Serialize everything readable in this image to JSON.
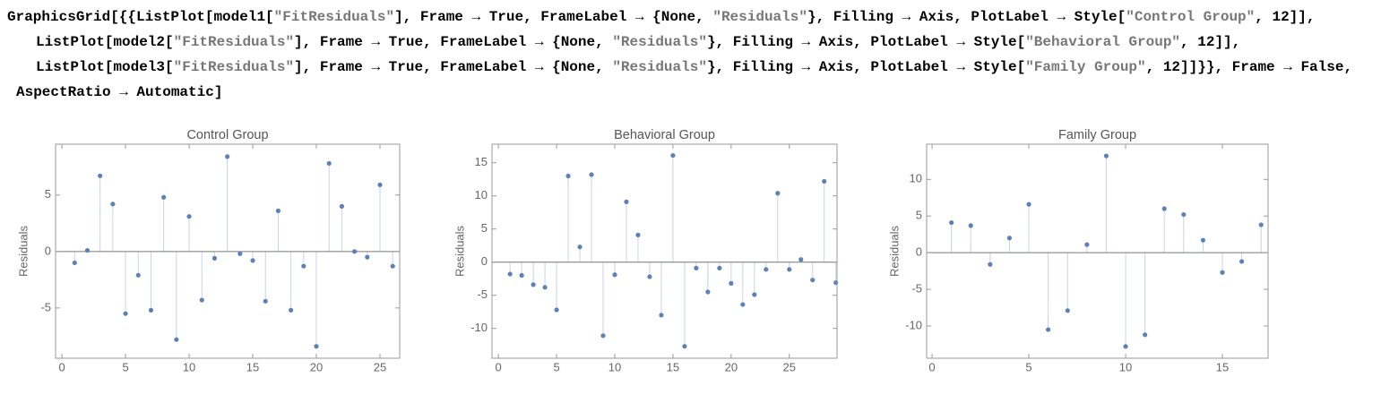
{
  "code": [
    "GraphicsGrid[{{ListPlot[model1[\"FitResiduals\"], Frame → True, FrameLabel → {None, \"Residuals\"}, Filling → Axis, PlotLabel → Style[\"Control Group\", 12]],",
    "ListPlot[model2[\"FitResiduals\"], Frame → True, FrameLabel → {None, \"Residuals\"}, Filling → Axis, PlotLabel → Style[\"Behavioral Group\", 12]],",
    "ListPlot[model3[\"FitResiduals\"], Frame → True, FrameLabel → {None, \"Residuals\"}, Filling → Axis, PlotLabel → Style[\"Family Group\", 12]]}}, Frame → False,",
    "AspectRatio → Automatic]"
  ],
  "chart_data": [
    {
      "type": "scatter",
      "title": "Control Group",
      "y_label": "Residuals",
      "filling": true,
      "color": "#5e81b5",
      "x": [
        1,
        2,
        3,
        4,
        5,
        6,
        7,
        8,
        9,
        10,
        11,
        12,
        13,
        14,
        15,
        16,
        17,
        18,
        19,
        20,
        21,
        22,
        23,
        24,
        25,
        26
      ],
      "values": [
        -1.0,
        0.1,
        6.7,
        4.2,
        -5.5,
        -2.1,
        -5.2,
        4.8,
        -7.8,
        3.1,
        -4.3,
        -0.6,
        8.4,
        -0.2,
        -0.8,
        -4.4,
        3.6,
        -5.2,
        -1.3,
        -8.4,
        7.8,
        4.0,
        0.0,
        -0.5,
        5.9,
        -1.3
      ],
      "xlim": [
        -0.5,
        26.55
      ],
      "ylim": [
        -9.45,
        9.5
      ],
      "xticks": [
        0,
        5,
        10,
        15,
        20,
        25
      ],
      "yticks": [
        -5,
        0,
        5
      ]
    },
    {
      "type": "scatter",
      "title": "Behavioral Group",
      "y_label": "Residuals",
      "filling": true,
      "color": "#5e81b5",
      "x": [
        1,
        2,
        3,
        4,
        5,
        6,
        7,
        8,
        9,
        10,
        11,
        12,
        13,
        14,
        15,
        16,
        17,
        18,
        19,
        20,
        21,
        22,
        23,
        24,
        25,
        26,
        27,
        28,
        29
      ],
      "values": [
        -1.8,
        -2.0,
        -3.4,
        -3.8,
        -7.2,
        13.0,
        2.3,
        13.2,
        -11.1,
        -1.9,
        9.1,
        4.1,
        -2.2,
        -8.0,
        16.1,
        -12.7,
        -0.9,
        -4.5,
        -0.9,
        -3.2,
        -6.4,
        -4.9,
        -1.1,
        10.4,
        -1.1,
        0.4,
        -2.7,
        12.2,
        -3.1
      ],
      "xlim": [
        -0.55,
        29.1
      ],
      "ylim": [
        -14.5,
        17.8
      ],
      "xticks": [
        0,
        5,
        10,
        15,
        20,
        25
      ],
      "yticks": [
        -10,
        -5,
        0,
        5,
        10,
        15
      ]
    },
    {
      "type": "scatter",
      "title": "Family Group",
      "y_label": "Residuals",
      "filling": true,
      "color": "#5e81b5",
      "x": [
        1,
        2,
        3,
        4,
        5,
        6,
        7,
        8,
        9,
        10,
        11,
        12,
        13,
        14,
        15,
        16,
        17
      ],
      "values": [
        4.1,
        3.7,
        -1.6,
        2.0,
        6.6,
        -10.5,
        -7.9,
        1.1,
        13.2,
        -12.8,
        -11.2,
        6.0,
        5.2,
        1.7,
        -2.7,
        -1.2,
        3.8
      ],
      "xlim": [
        -0.28,
        17.36
      ],
      "ylim": [
        -14.4,
        14.8
      ],
      "xticks": [
        0,
        5,
        10,
        15
      ],
      "yticks": [
        -10,
        -5,
        0,
        5,
        10
      ]
    }
  ]
}
